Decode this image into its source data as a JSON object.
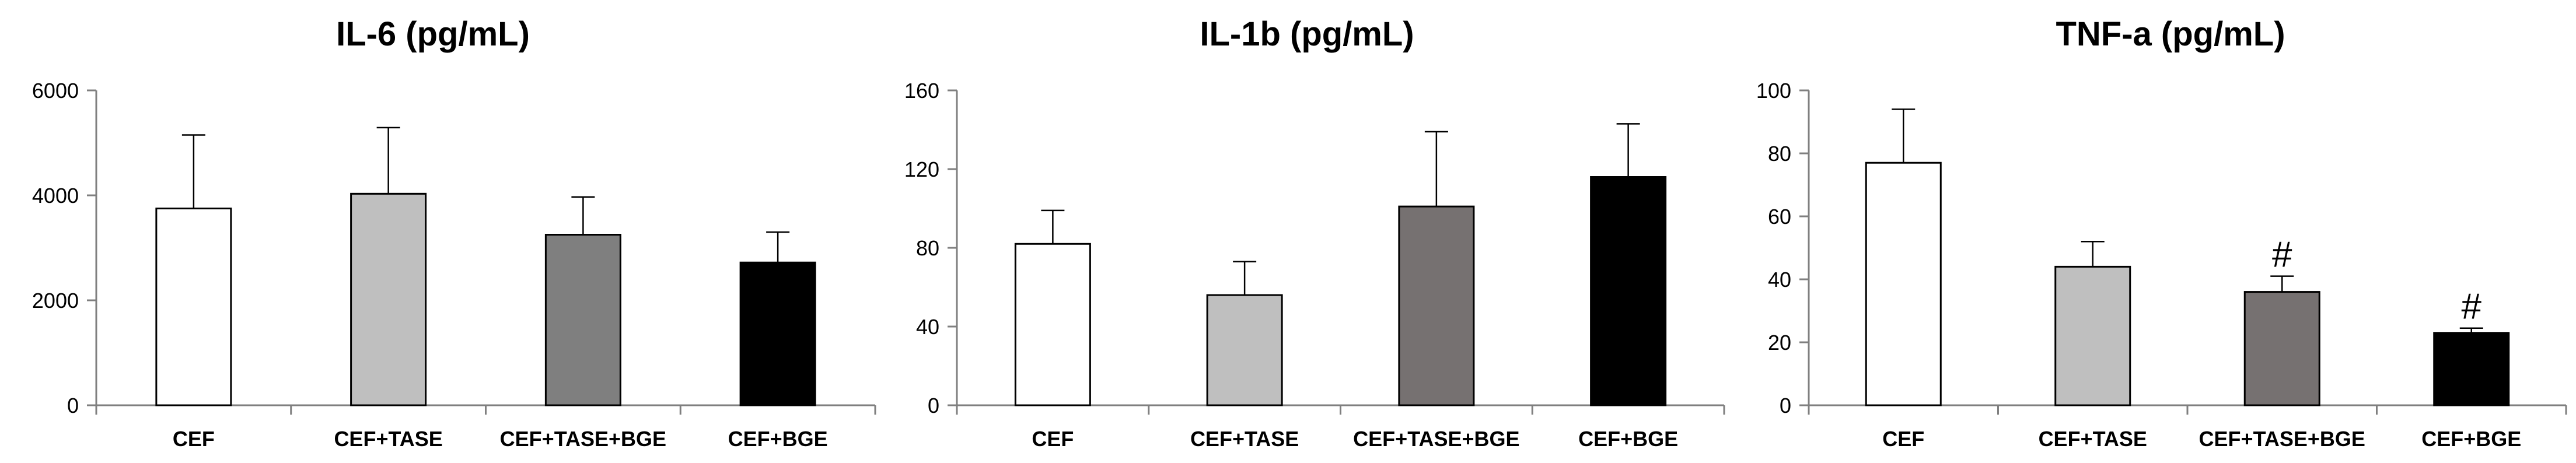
{
  "chart_data": [
    {
      "type": "bar",
      "title": "IL-6 (pg/mL)",
      "xlabel": "",
      "ylabel": "",
      "categories": [
        "CEF",
        "CEF+TASE",
        "CEF+TASE+BGE",
        "CEF+BGE"
      ],
      "values": [
        3750,
        4030,
        3250,
        2720
      ],
      "errors": [
        1400,
        1260,
        720,
        580
      ],
      "annotations": [
        "",
        "",
        "",
        ""
      ],
      "ylim": [
        0,
        6000
      ],
      "yticks": [
        0,
        2000,
        4000,
        6000
      ],
      "ytick_labels": [
        "0",
        "2000",
        "4000",
        "6000"
      ],
      "bar_colors": [
        "#ffffff",
        "#bfbfbf",
        "#7f7f7f",
        "#000000"
      ],
      "grid": false
    },
    {
      "type": "bar",
      "title": "IL-1b (pg/mL)",
      "xlabel": "",
      "ylabel": "",
      "categories": [
        "CEF",
        "CEF+TASE",
        "CEF+TASE+BGE",
        "CEF+BGE"
      ],
      "values": [
        82,
        56,
        101,
        116
      ],
      "errors": [
        17,
        17,
        38,
        27
      ],
      "annotations": [
        "",
        "",
        "",
        ""
      ],
      "ylim": [
        0,
        160
      ],
      "yticks": [
        0,
        40,
        80,
        120,
        160
      ],
      "ytick_labels": [
        "0",
        "40",
        "80",
        "120",
        "160"
      ],
      "bar_colors": [
        "#ffffff",
        "#bfbfbf",
        "#767171",
        "#000000"
      ],
      "grid": false
    },
    {
      "type": "bar",
      "title": "TNF-a (pg/mL)",
      "xlabel": "",
      "ylabel": "",
      "categories": [
        "CEF",
        "CEF+TASE",
        "CEF+TASE+BGE",
        "CEF+BGE"
      ],
      "values": [
        77,
        44,
        36,
        23
      ],
      "errors": [
        17,
        8,
        5,
        1.5
      ],
      "annotations": [
        "",
        "",
        "#",
        "#"
      ],
      "ylim": [
        0,
        100
      ],
      "yticks": [
        0,
        20,
        40,
        60,
        80,
        100
      ],
      "ytick_labels": [
        "0",
        "20",
        "40",
        "60",
        "80",
        "100"
      ],
      "bar_colors": [
        "#ffffff",
        "#bfbfbf",
        "#767171",
        "#000000"
      ],
      "grid": false
    }
  ]
}
